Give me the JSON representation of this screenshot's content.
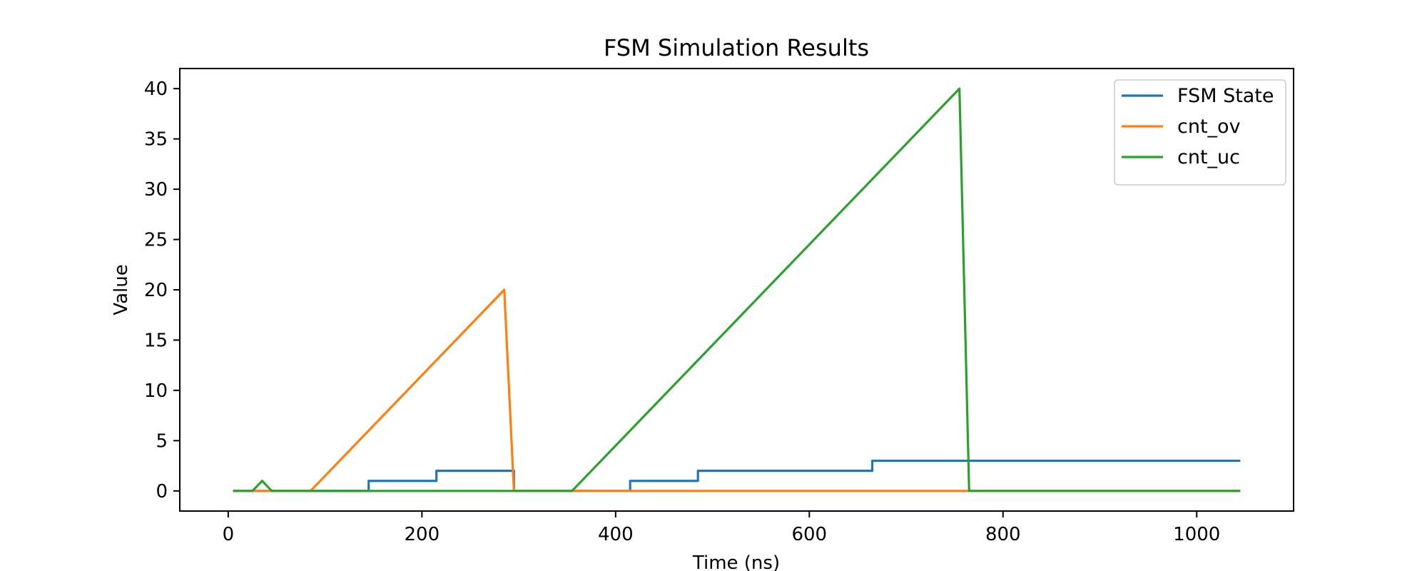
{
  "chart_data": {
    "type": "line",
    "title": "FSM Simulation Results",
    "xlabel": "Time (ns)",
    "ylabel": "Value",
    "xlim": [
      -50,
      1100
    ],
    "ylim": [
      -2,
      42
    ],
    "xticks": [
      0,
      200,
      400,
      600,
      800,
      1000
    ],
    "yticks": [
      0,
      5,
      10,
      15,
      20,
      25,
      30,
      35,
      40
    ],
    "grid": false,
    "legend_position": "top-right",
    "series": [
      {
        "name": "FSM State",
        "color": "#1f77b4",
        "points": [
          [
            5,
            0
          ],
          [
            145,
            0
          ],
          [
            145,
            1
          ],
          [
            215,
            1
          ],
          [
            215,
            2
          ],
          [
            295,
            2
          ],
          [
            295,
            0
          ],
          [
            415,
            0
          ],
          [
            415,
            1
          ],
          [
            485,
            1
          ],
          [
            485,
            2
          ],
          [
            665,
            2
          ],
          [
            665,
            3
          ],
          [
            1045,
            3
          ]
        ]
      },
      {
        "name": "cnt_ov",
        "color": "#ff7f0e",
        "points": [
          [
            5,
            0
          ],
          [
            85,
            0
          ],
          [
            285,
            20
          ],
          [
            295,
            0
          ],
          [
            1045,
            0
          ]
        ]
      },
      {
        "name": "cnt_uc",
        "color": "#2ca02c",
        "points": [
          [
            5,
            0
          ],
          [
            25,
            0
          ],
          [
            35,
            1
          ],
          [
            45,
            0
          ],
          [
            355,
            0
          ],
          [
            755,
            40
          ],
          [
            765,
            0
          ],
          [
            1045,
            0
          ]
        ]
      }
    ]
  }
}
